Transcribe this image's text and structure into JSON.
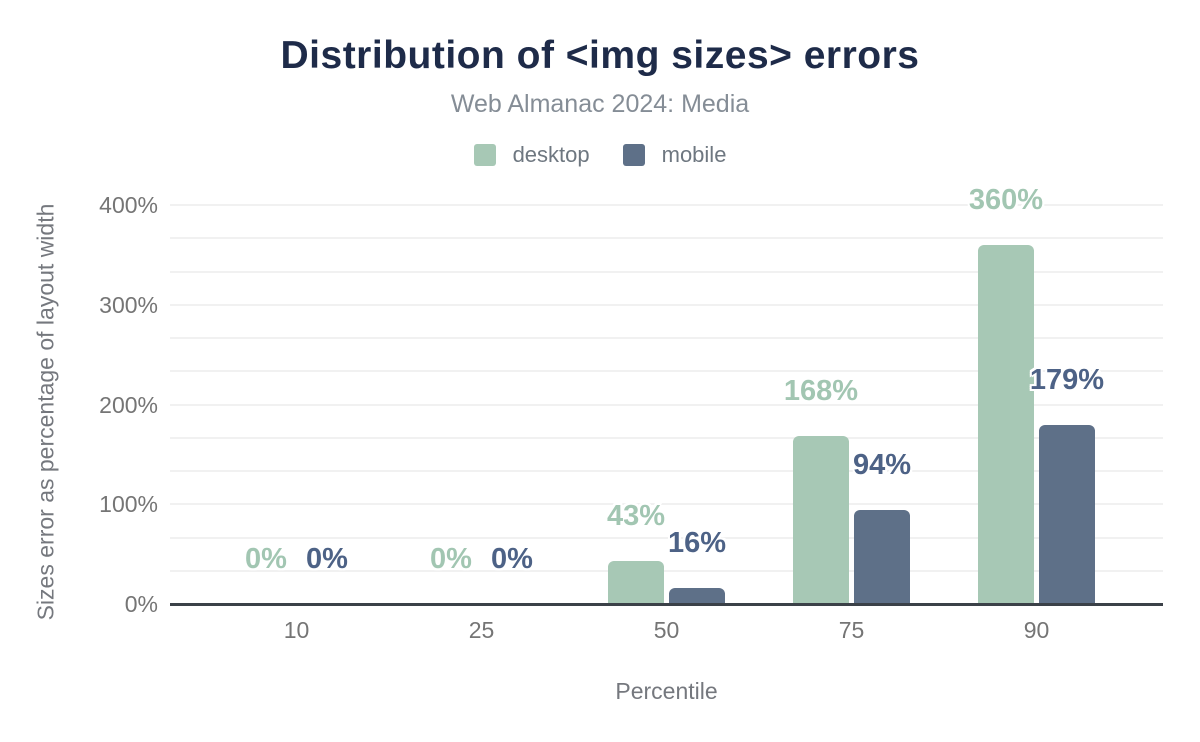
{
  "chart_data": {
    "type": "bar",
    "title": "Distribution of <img sizes> errors",
    "subtitle": "Web Almanac 2024: Media",
    "xlabel": "Percentile",
    "ylabel": "Sizes error as percentage of layout width",
    "categories": [
      "10",
      "25",
      "50",
      "75",
      "90"
    ],
    "series": [
      {
        "name": "desktop",
        "color": "#a7c8b5",
        "label_color": "#a2c6b2",
        "values": [
          0,
          0,
          43,
          168,
          360
        ]
      },
      {
        "name": "mobile",
        "color": "#5e7088",
        "label_color": "#4d6286",
        "values": [
          0,
          0,
          16,
          94,
          179
        ]
      }
    ],
    "value_label_suffix": "%",
    "ylim": [
      0,
      400
    ],
    "yticks": [
      "0%",
      "100%",
      "200%",
      "300%",
      "400%"
    ],
    "ytick_interval": 100,
    "grid": true,
    "legend_position": "top",
    "colors": {
      "title": "#1e2b49",
      "subtitle": "#858d96",
      "tick_text": "#757575",
      "gridline": "#f1f1f1",
      "axis_line": "#3b4148",
      "background": "#ffffff"
    }
  }
}
